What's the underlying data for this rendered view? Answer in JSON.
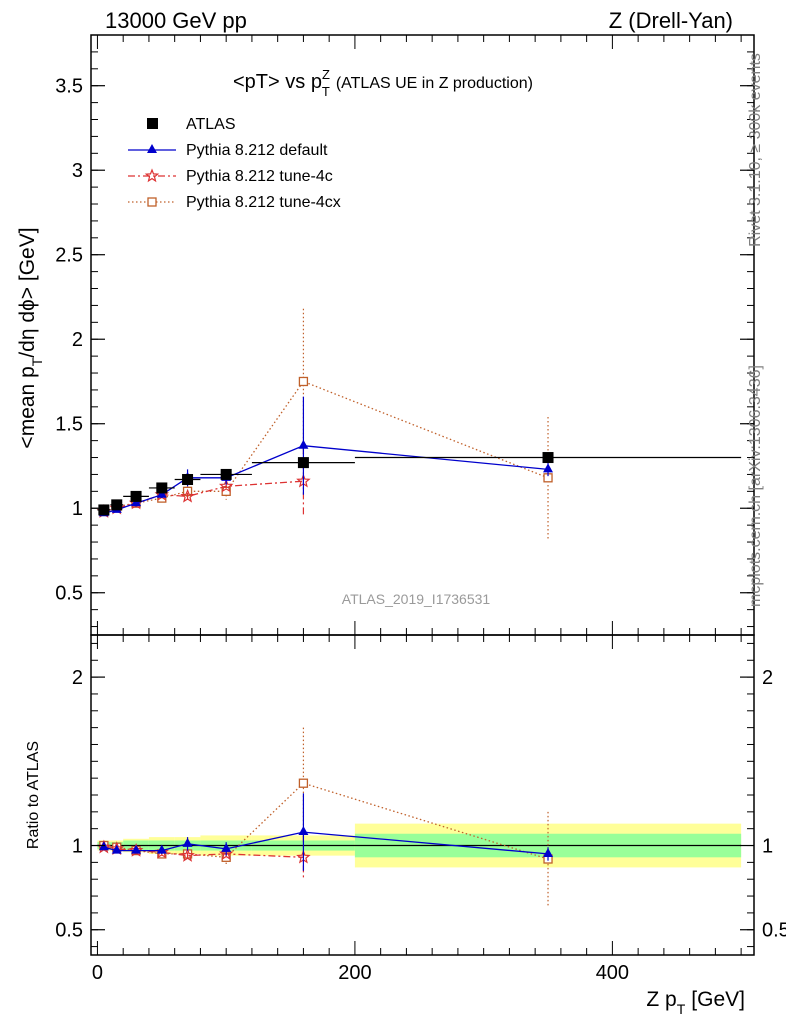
{
  "header": {
    "energy_label": "13000 GeV pp",
    "process_label": "Z (Drell-Yan)"
  },
  "chart_data": [
    {
      "type": "scatter",
      "title_main": "<pT> vs p",
      "title_sup": "Z",
      "title_sub": "T",
      "title_suffix": "(ATLAS UE in Z production)",
      "ylabel_prefix": "<mean p",
      "ylabel_sub": "T",
      "ylabel_suffix": "/dη dϕ> [GeV]",
      "xlim": [
        -5,
        510
      ],
      "ylim": [
        0.25,
        3.8
      ],
      "y_ticks": [
        0.5,
        1,
        1.5,
        2,
        2.5,
        3,
        3.5
      ],
      "y_tick_labels": [
        "0.5",
        "1",
        "1.5",
        "2",
        "2.5",
        "3",
        "3.5"
      ],
      "watermark": "ATLAS_2019_I1736531",
      "legend_position": "top-left",
      "series": [
        {
          "name": "ATLAS",
          "style": "data",
          "color": "#000000",
          "x": [
            5,
            15,
            30,
            50,
            70,
            100,
            160,
            350
          ],
          "y": [
            0.99,
            1.02,
            1.07,
            1.12,
            1.17,
            1.2,
            1.27,
            1.3
          ],
          "xerr": [
            5,
            5,
            10,
            10,
            10,
            20,
            40,
            150
          ]
        },
        {
          "name": "Pythia 8.212 default",
          "style": "solid",
          "marker": "triangle",
          "color": "#0000cc",
          "x": [
            5,
            15,
            30,
            50,
            70,
            100,
            160,
            350
          ],
          "y": [
            0.97,
            0.99,
            1.03,
            1.08,
            1.18,
            1.18,
            1.37,
            1.23
          ],
          "yerr": [
            0.01,
            0.01,
            0.02,
            0.02,
            0.05,
            0.04,
            0.29,
            0.04
          ]
        },
        {
          "name": "Pythia 8.212 tune-4c",
          "style": "dashdot",
          "marker": "star",
          "color": "#dd3333",
          "x": [
            5,
            15,
            30,
            50,
            70,
            100,
            160,
            350
          ],
          "y": [
            0.98,
            1.0,
            1.03,
            1.08,
            1.07,
            1.13,
            1.16,
            null
          ],
          "yerr": [
            0.01,
            0.01,
            0.01,
            0.02,
            0.02,
            0.03,
            0.2,
            null
          ]
        },
        {
          "name": "Pythia 8.212 tune-4cx",
          "style": "dotted",
          "marker": "open-square",
          "color": "#c0602a",
          "x": [
            5,
            15,
            30,
            50,
            70,
            100,
            160,
            350
          ],
          "y": [
            0.99,
            1.01,
            1.03,
            1.06,
            1.1,
            1.1,
            1.75,
            1.18
          ],
          "yerr": [
            0.01,
            0.01,
            0.01,
            0.02,
            0.03,
            0.05,
            0.43,
            0.36
          ]
        }
      ]
    },
    {
      "type": "scatter",
      "ylabel": "Ratio to ATLAS",
      "xlabel_prefix": "Z p",
      "xlabel_sub": "T",
      "xlabel_suffix": "[GeV]",
      "xlim": [
        -5,
        510
      ],
      "ylim": [
        0.35,
        2.25
      ],
      "x_ticks": [
        0,
        200,
        400
      ],
      "x_tick_labels": [
        "0",
        "200",
        "400"
      ],
      "y_ticks": [
        0.5,
        1,
        2
      ],
      "y_tick_labels": [
        "0.5",
        "1",
        "2"
      ],
      "bands": [
        {
          "x0": 0,
          "x1": 10,
          "inner": 0.02,
          "outer": 0.03
        },
        {
          "x0": 10,
          "x1": 20,
          "inner": 0.02,
          "outer": 0.03
        },
        {
          "x0": 20,
          "x1": 40,
          "inner": 0.03,
          "outer": 0.04
        },
        {
          "x0": 40,
          "x1": 60,
          "inner": 0.03,
          "outer": 0.05
        },
        {
          "x0": 60,
          "x1": 80,
          "inner": 0.03,
          "outer": 0.05
        },
        {
          "x0": 80,
          "x1": 120,
          "inner": 0.03,
          "outer": 0.06
        },
        {
          "x0": 120,
          "x1": 200,
          "inner": 0.03,
          "outer": 0.06
        },
        {
          "x0": 200,
          "x1": 500,
          "inner": 0.07,
          "outer": 0.13
        }
      ],
      "series": [
        {
          "name": "Pythia 8.212 default",
          "style": "solid",
          "marker": "triangle",
          "color": "#0000cc",
          "x": [
            5,
            15,
            30,
            50,
            70,
            100,
            160,
            350
          ],
          "y": [
            0.99,
            0.97,
            0.97,
            0.97,
            1.01,
            0.98,
            1.08,
            0.95
          ],
          "yerr": [
            0.01,
            0.01,
            0.01,
            0.02,
            0.04,
            0.04,
            0.23,
            0.04
          ]
        },
        {
          "name": "Pythia 8.212 tune-4c",
          "style": "dashdot",
          "marker": "star",
          "color": "#dd3333",
          "x": [
            5,
            15,
            30,
            50,
            70,
            100,
            160
          ],
          "y": [
            0.99,
            0.98,
            0.97,
            0.96,
            0.94,
            0.95,
            0.93
          ],
          "yerr": [
            0.01,
            0.01,
            0.01,
            0.02,
            0.02,
            0.03,
            0.13
          ]
        },
        {
          "name": "Pythia 8.212 tune-4cx",
          "style": "dotted",
          "marker": "open-square",
          "color": "#c0602a",
          "x": [
            5,
            15,
            30,
            50,
            70,
            100,
            160,
            350
          ],
          "y": [
            1.0,
            0.99,
            0.97,
            0.95,
            0.95,
            0.93,
            1.37,
            0.92
          ],
          "yerr": [
            0.01,
            0.01,
            0.01,
            0.02,
            0.03,
            0.04,
            0.33,
            0.28
          ]
        }
      ]
    }
  ],
  "side_labels": {
    "rivet": "Rivet 3.1.10, ≥ 300k events",
    "mcplots": "mcplots.cern.ch [arXiv:1306.3436]"
  },
  "colors": {
    "band_inner": "#99ff99",
    "band_outer": "#ffff99"
  }
}
